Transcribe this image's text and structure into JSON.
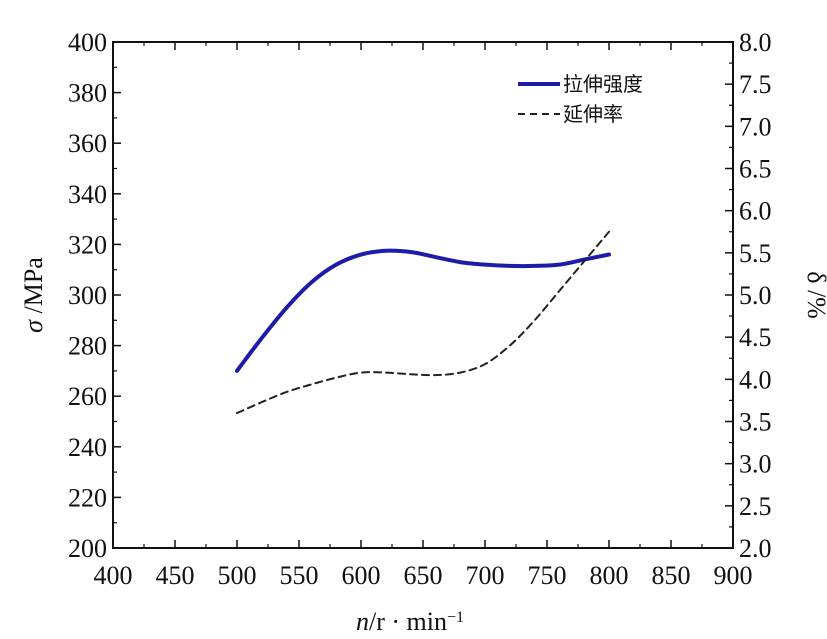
{
  "chart_data": {
    "type": "line",
    "x_axis": {
      "label_italic": "n",
      "label_rest": "/r · min",
      "label_sup": "−1",
      "range": [
        400,
        900
      ],
      "ticks": [
        "400",
        "450",
        "500",
        "550",
        "600",
        "650",
        "700",
        "750",
        "800",
        "850",
        "900"
      ]
    },
    "y_left": {
      "label_symbol": "σ",
      "label_unit": " /MPa",
      "range": [
        200,
        400
      ],
      "ticks": [
        "200",
        "220",
        "240",
        "260",
        "280",
        "300",
        "320",
        "340",
        "360",
        "380",
        "400"
      ]
    },
    "y_right": {
      "label": "δ /%",
      "range": [
        2.0,
        8.0
      ],
      "ticks": [
        "2.0",
        "2.5",
        "3.0",
        "3.5",
        "4.0",
        "4.5",
        "5.0",
        "5.5",
        "6.0",
        "6.5",
        "7.0",
        "7.5",
        "8.0"
      ]
    },
    "series": [
      {
        "name": "拉伸强度",
        "axis": "left",
        "style": "solid",
        "color": "#1c1ca8",
        "x": [
          500,
          520,
          540,
          560,
          580,
          600,
          620,
          640,
          660,
          680,
          700,
          720,
          740,
          760,
          780,
          800
        ],
        "y": [
          270,
          283,
          295,
          305,
          312,
          316,
          317.5,
          317,
          315,
          313,
          312,
          311.5,
          311.5,
          312,
          314,
          316
        ]
      },
      {
        "name": "延伸率",
        "axis": "right",
        "style": "dashed",
        "color": "#222222",
        "x": [
          500,
          520,
          540,
          560,
          580,
          600,
          620,
          640,
          660,
          680,
          700,
          720,
          740,
          760,
          780,
          800
        ],
        "y": [
          3.6,
          3.73,
          3.85,
          3.94,
          4.02,
          4.08,
          4.08,
          4.06,
          4.05,
          4.08,
          4.18,
          4.4,
          4.7,
          5.05,
          5.4,
          5.75
        ]
      }
    ],
    "legend": {
      "position": "top-right"
    },
    "grid": false
  }
}
